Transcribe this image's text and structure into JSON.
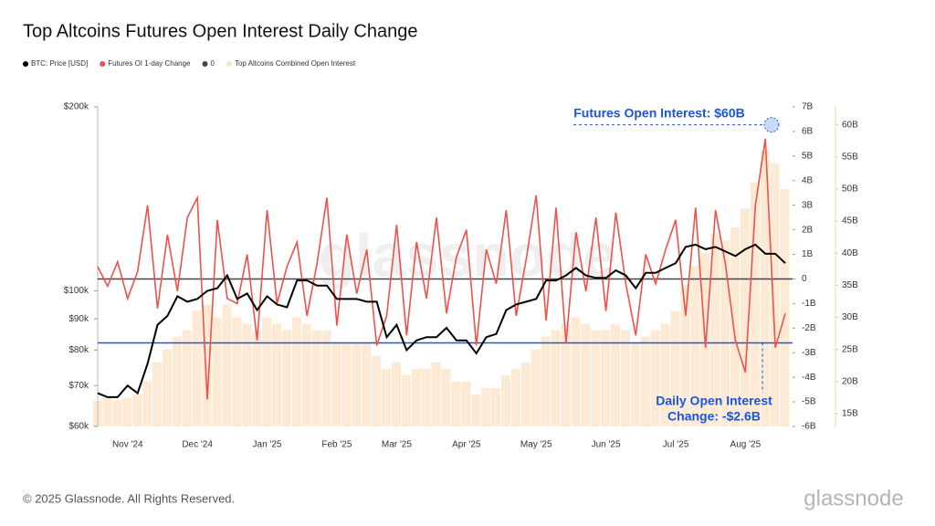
{
  "chart_data": {
    "type": "multi-axis",
    "title": "Top Altcoins Futures Open Interest Daily Change",
    "categories": [
      null,
      null,
      null,
      "Nov '24",
      null,
      null,
      null,
      null,
      null,
      null,
      "Dec '24",
      null,
      null,
      null,
      null,
      null,
      null,
      "Jan '25",
      null,
      null,
      null,
      null,
      null,
      null,
      "Feb '25",
      null,
      null,
      null,
      null,
      null,
      "Mar '25",
      null,
      null,
      null,
      null,
      null,
      null,
      "Apr '25",
      null,
      null,
      null,
      null,
      null,
      null,
      "May '25",
      null,
      null,
      null,
      null,
      null,
      null,
      "Jun '25",
      null,
      null,
      null,
      null,
      null,
      null,
      "Jul '25",
      null,
      null,
      null,
      null,
      null,
      null,
      "Aug '25",
      null,
      null,
      null,
      null
    ],
    "series": [
      {
        "name": "BTC: Price [USD]",
        "color": "#000000",
        "axis": "y",
        "kind": "line",
        "values": [
          68,
          67,
          67,
          70,
          68,
          76,
          88,
          91,
          98,
          96,
          97,
          100,
          101,
          106,
          97,
          99,
          93,
          98,
          95,
          94,
          104,
          104,
          102,
          102,
          97,
          97,
          97,
          96,
          96,
          84,
          88,
          80,
          83,
          84,
          84,
          87,
          83,
          83,
          79,
          84,
          85,
          93,
          95,
          96,
          97,
          104,
          104,
          106,
          109,
          106,
          105,
          105,
          108,
          106,
          101,
          107,
          107,
          109,
          111,
          118,
          119,
          117,
          118,
          116,
          114,
          117,
          119,
          115,
          115,
          111
        ]
      },
      {
        "name": "Futures OI 1-day Change",
        "color": "#f0504c",
        "axis": "y2",
        "kind": "line",
        "values": [
          0.5,
          -0.3,
          0.7,
          -0.8,
          0.3,
          3.0,
          -1.2,
          1.8,
          -0.5,
          2.5,
          3.3,
          -4.9,
          2.4,
          -0.8,
          -1.0,
          1.0,
          -2.5,
          2.8,
          -1.0,
          0.5,
          1.5,
          -1.5,
          0.6,
          3.3,
          -1.9,
          1.8,
          -0.6,
          1.2,
          -2.7,
          -1.5,
          2.2,
          -2.3,
          1.5,
          -0.8,
          2.5,
          -1.4,
          0.9,
          2.0,
          -2.7,
          1.2,
          -0.2,
          2.8,
          -1.5,
          0.8,
          3.4,
          -1.7,
          2.9,
          -2.6,
          1.9,
          -0.5,
          2.5,
          -1.3,
          2.7,
          -0.2,
          -2.3,
          1.0,
          -0.2,
          1.2,
          2.4,
          -1.5,
          2.9,
          -2.8,
          2.8,
          0.6,
          -2.5,
          -3.8,
          3.0,
          5.7,
          -2.8,
          -1.4
        ]
      },
      {
        "name": "Top Altcoins Combined Open Interest",
        "color": "#fbe3c6",
        "axis": "y3",
        "kind": "bar",
        "values": [
          17,
          17.5,
          17,
          17.5,
          18,
          20,
          23,
          25,
          27,
          28,
          31,
          32,
          30,
          32,
          30,
          29,
          28,
          30,
          29,
          28,
          30,
          29,
          28,
          28,
          26,
          26,
          26,
          26,
          24,
          22,
          23,
          21,
          22,
          22,
          23,
          22,
          20,
          20,
          18,
          19,
          19,
          21,
          22,
          23,
          25,
          27,
          28,
          29,
          30,
          29,
          28,
          28,
          29,
          28,
          26,
          27,
          28,
          29,
          31,
          35,
          38,
          40,
          43,
          42,
          44,
          47,
          51,
          56,
          54,
          50
        ]
      }
    ],
    "reference_series": {
      "name": "0",
      "color": "#444444",
      "axis": "y2",
      "value": 0
    },
    "ylim": [
      60,
      200
    ],
    "log_y": true,
    "yticks": [
      {
        "value": 60,
        "label": "$60k"
      },
      {
        "value": 70,
        "label": "$70k"
      },
      {
        "value": 80,
        "label": "$80k"
      },
      {
        "value": 90,
        "label": "$90k"
      },
      {
        "value": 100,
        "label": "$100k"
      },
      {
        "value": 200,
        "label": "$200k"
      }
    ],
    "y2lim": [
      -6,
      7
    ],
    "y2ticks": [
      {
        "value": 7,
        "label": "7B"
      },
      {
        "value": 6,
        "label": "6B"
      },
      {
        "value": 5,
        "label": "5B"
      },
      {
        "value": 4,
        "label": "4B"
      },
      {
        "value": 3,
        "label": "3B"
      },
      {
        "value": 2,
        "label": "2B"
      },
      {
        "value": 1,
        "label": "1B"
      },
      0,
      {
        "value": -1,
        "label": "-1B"
      },
      {
        "value": -2,
        "label": "-2B"
      },
      {
        "value": -3,
        "label": "-3B"
      },
      {
        "value": -4,
        "label": "-4B"
      },
      {
        "value": -5,
        "label": "-5B"
      },
      {
        "value": -6,
        "label": "-6B"
      }
    ],
    "y3lim": [
      13,
      62.8
    ],
    "y3ticks": [
      {
        "value": 60,
        "label": "60B"
      },
      {
        "value": 55,
        "label": "55B"
      },
      {
        "value": 50,
        "label": "50B"
      },
      {
        "value": 45,
        "label": "45B"
      },
      {
        "value": 40,
        "label": "40B"
      },
      {
        "value": 35,
        "label": "35B"
      },
      {
        "value": 30,
        "label": "30B"
      },
      {
        "value": 25,
        "label": "25B"
      },
      {
        "value": 20,
        "label": "20B"
      },
      {
        "value": 15,
        "label": "15B"
      }
    ],
    "annotations": [
      {
        "lines": [
          "Futures Open Interest: $60B"
        ],
        "value": 60,
        "axis": "y3",
        "color": "#1a56db"
      },
      {
        "lines": [
          "Daily Open Interest",
          "Change: -$2.6B"
        ],
        "value": -2.6,
        "axis": "y2",
        "color": "#1a56db"
      }
    ],
    "watermark": "glassnode"
  },
  "footer": {
    "copyright": "© 2025 Glassnode. All Rights Reserved.",
    "logo": "glassnode"
  }
}
